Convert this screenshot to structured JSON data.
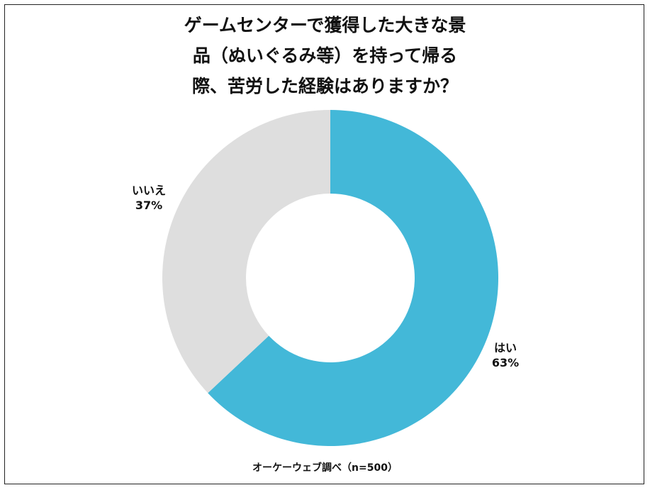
{
  "chart_data": {
    "type": "pie",
    "donut": true,
    "title_lines": [
      "ゲームセンターで獲得した大きな景",
      "品（ぬいぐるみ等）を持って帰る",
      "際、苦労した経験はありますか？"
    ],
    "slices": [
      {
        "label": "はい",
        "value": 63,
        "value_label": "63%",
        "color": "#43B8D8"
      },
      {
        "label": "いいえ",
        "value": 37,
        "value_label": "37%",
        "color": "#DEDEDE"
      }
    ],
    "start": "top",
    "direction": "clockwise",
    "legend": "none",
    "source": "オーケーウェブ調べ（n=500）"
  }
}
